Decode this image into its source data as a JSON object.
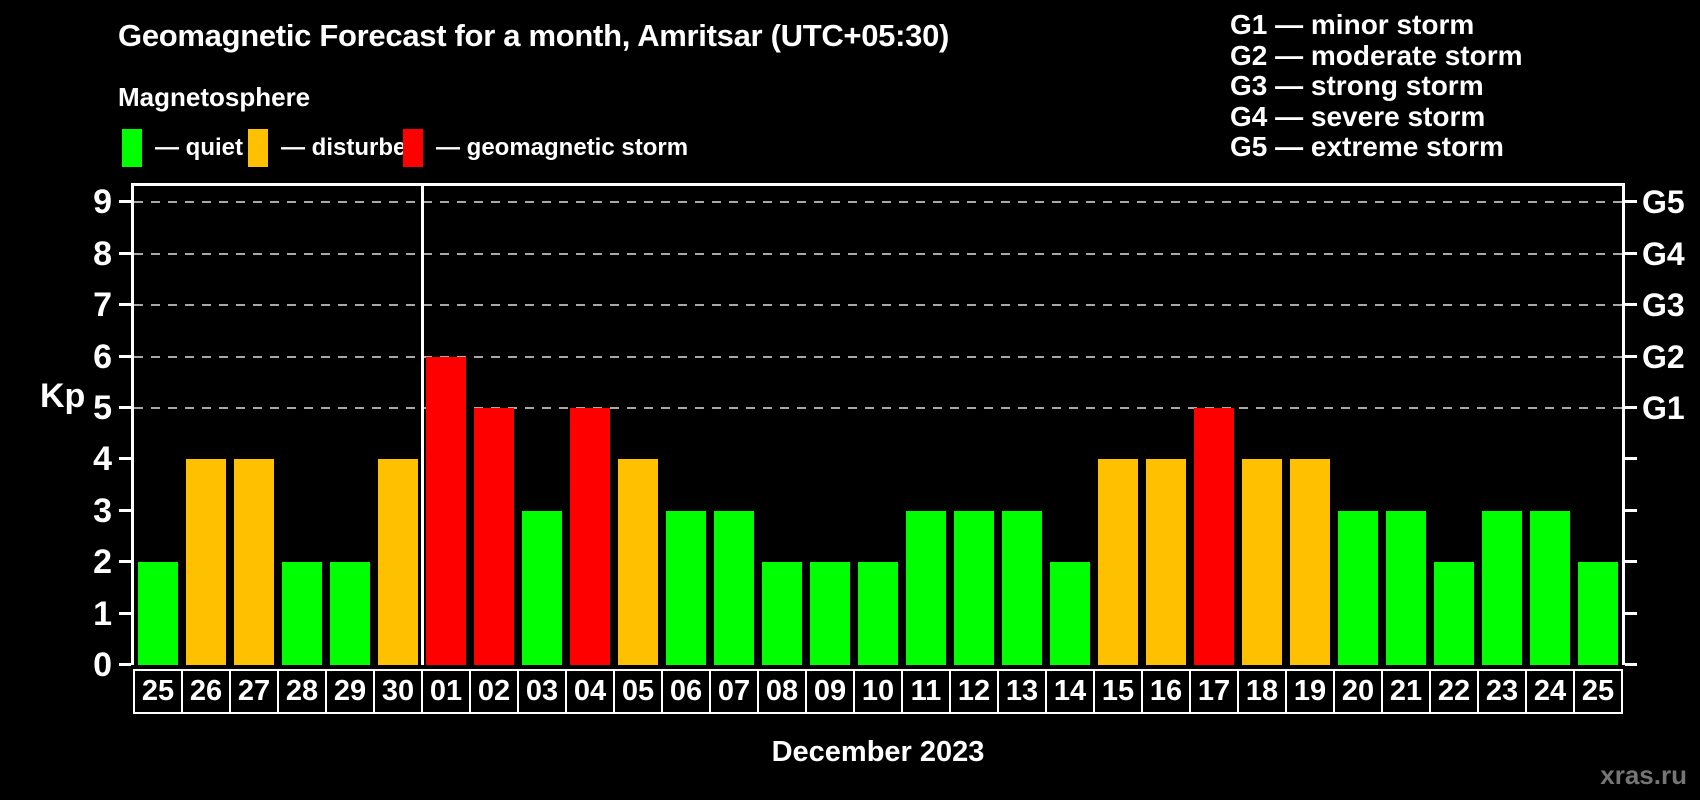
{
  "header": {
    "title": "Geomagnetic Forecast for a month, Amritsar (UTC+05:30)",
    "subtitle": "Magnetosphere"
  },
  "legend": [
    {
      "name": "quiet",
      "label": "— quiet",
      "color": "#00ff00"
    },
    {
      "name": "disturbed",
      "label": "— disturbed",
      "color": "#ffc000"
    },
    {
      "name": "geomagnetic-storm",
      "label": "— geomagnetic storm",
      "color": "#ff0000"
    }
  ],
  "g_legend": [
    "G1 — minor storm",
    "G2 — moderate storm",
    "G3 — strong storm",
    "G4 — severe storm",
    "G5 — extreme storm"
  ],
  "chart_data": {
    "type": "bar",
    "title": "Geomagnetic Forecast for a month, Amritsar (UTC+05:30)",
    "categories": [
      "25",
      "26",
      "27",
      "28",
      "29",
      "30",
      "01",
      "02",
      "03",
      "04",
      "05",
      "06",
      "07",
      "08",
      "09",
      "10",
      "11",
      "12",
      "13",
      "14",
      "15",
      "16",
      "17",
      "18",
      "19",
      "20",
      "21",
      "22",
      "23",
      "24",
      "25"
    ],
    "values": [
      2,
      4,
      4,
      2,
      2,
      4,
      6,
      5,
      3,
      5,
      4,
      3,
      3,
      2,
      2,
      2,
      3,
      3,
      3,
      2,
      4,
      4,
      5,
      4,
      4,
      3,
      3,
      2,
      3,
      3,
      2
    ],
    "statuses": [
      "quiet",
      "disturbed",
      "disturbed",
      "quiet",
      "quiet",
      "disturbed",
      "storm",
      "storm",
      "quiet",
      "storm",
      "disturbed",
      "quiet",
      "quiet",
      "quiet",
      "quiet",
      "quiet",
      "quiet",
      "quiet",
      "quiet",
      "quiet",
      "disturbed",
      "disturbed",
      "storm",
      "disturbed",
      "disturbed",
      "quiet",
      "quiet",
      "quiet",
      "quiet",
      "quiet",
      "quiet"
    ],
    "status_colors": {
      "quiet": "#00ff00",
      "disturbed": "#ffc000",
      "storm": "#ff0000"
    },
    "ylabel": "Kp",
    "xlabel": "December 2023",
    "ylim": [
      0,
      9.4
    ],
    "yticks": [
      0,
      1,
      2,
      3,
      4,
      5,
      6,
      7,
      8,
      9
    ],
    "gridlines_at": [
      5,
      6,
      7,
      8,
      9
    ],
    "right_axis": [
      {
        "kp": 5,
        "label": "G1"
      },
      {
        "kp": 6,
        "label": "G2"
      },
      {
        "kp": 7,
        "label": "G3"
      },
      {
        "kp": 8,
        "label": "G4"
      },
      {
        "kp": 9,
        "label": "G5"
      }
    ],
    "month_separator_after_index": 5,
    "grid": "horizontal dashed lines at Kp 5-9 only",
    "legend_position": "top"
  },
  "footer": {
    "watermark": "xras.ru"
  }
}
